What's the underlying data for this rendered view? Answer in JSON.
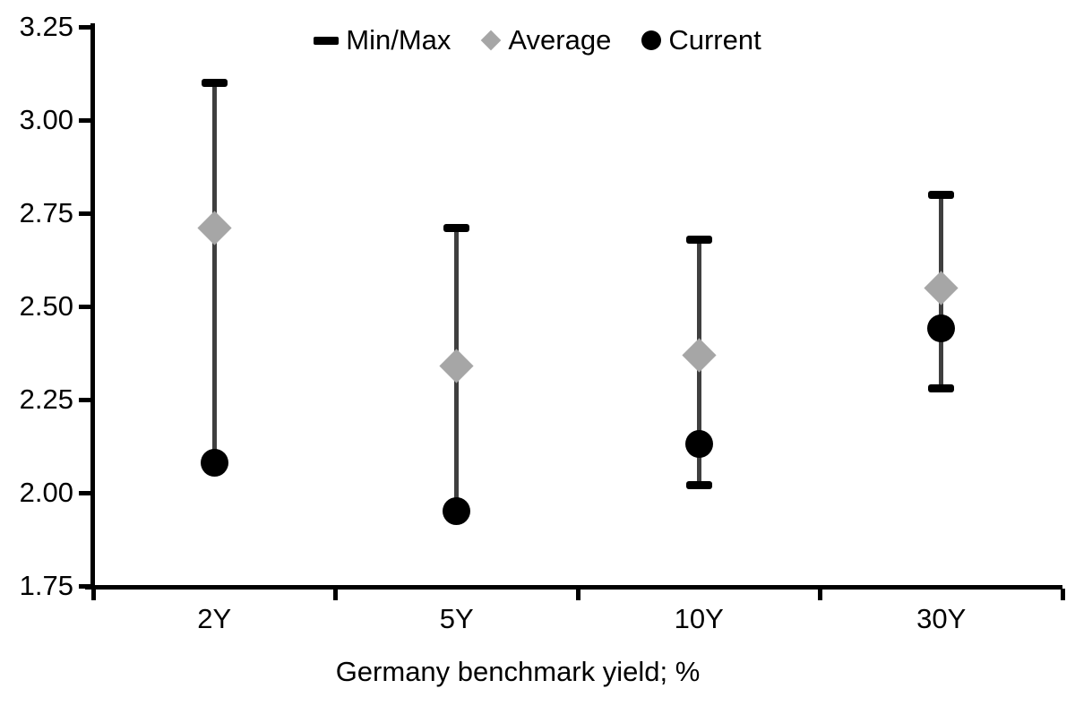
{
  "chart_data": {
    "type": "scatter",
    "subtype": "min-max-range-with-markers",
    "xlabel": "Germany benchmark yield; %",
    "categories": [
      "2Y",
      "5Y",
      "10Y",
      "30Y"
    ],
    "ylim": [
      1.75,
      3.25
    ],
    "ytick_step": 0.25,
    "yticks": [
      "3.25",
      "3.00",
      "2.75",
      "2.50",
      "2.25",
      "2.00",
      "1.75"
    ],
    "grid": false,
    "legend_position": "top-center",
    "series": [
      {
        "name": "Min/Max",
        "type": "errorbar",
        "max": [
          3.1,
          2.71,
          2.68,
          2.8
        ],
        "min": [
          2.08,
          1.95,
          2.02,
          2.28
        ],
        "min_cap_visible": [
          false,
          false,
          true,
          true
        ]
      },
      {
        "name": "Average",
        "type": "diamond",
        "values": [
          2.71,
          2.34,
          2.37,
          2.55
        ]
      },
      {
        "name": "Current",
        "type": "circle",
        "values": [
          2.08,
          1.95,
          2.13,
          2.44
        ]
      }
    ],
    "colors": {
      "errorbar_line": "#3f3f3f",
      "minmax_cap": "#000000",
      "average": "#a6a6a6",
      "current": "#000000",
      "axis": "#000000",
      "text": "#000000",
      "background": "#ffffff"
    }
  }
}
